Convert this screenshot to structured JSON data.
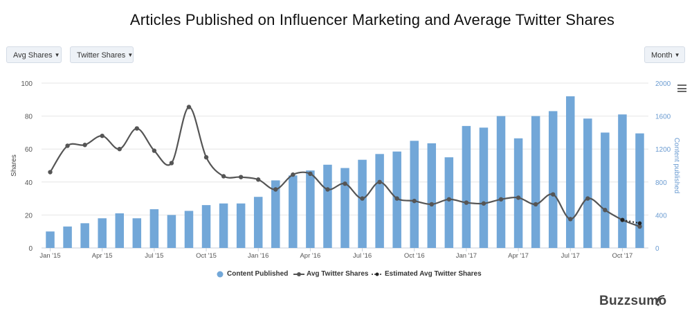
{
  "title": "Articles Published on Influencer Marketing and Average Twitter Shares",
  "controls": {
    "shares_dropdown": "Avg Shares",
    "twitter_dropdown": "Twitter Shares",
    "period_dropdown": "Month"
  },
  "brand": "Buzzsumo",
  "chart_data": {
    "type": "bar",
    "categories": [
      "Jan '15",
      "Feb '15",
      "Mar '15",
      "Apr '15",
      "May '15",
      "Jun '15",
      "Jul '15",
      "Aug '15",
      "Sep '15",
      "Oct '15",
      "Nov '15",
      "Dec '15",
      "Jan '16",
      "Feb '16",
      "Mar '16",
      "Apr '16",
      "May '16",
      "Jun '16",
      "Jul '16",
      "Aug '16",
      "Sep '16",
      "Oct '16",
      "Nov '16",
      "Dec '16",
      "Jan '17",
      "Feb '17",
      "Mar '17",
      "Apr '17",
      "May '17",
      "Jun '17",
      "Jul '17",
      "Aug '17",
      "Sep '17",
      "Oct '17",
      "Nov '17"
    ],
    "x_tick_labels": [
      "Jan '15",
      "Apr '15",
      "Jul '15",
      "Oct '15",
      "Jan '16",
      "Apr '16",
      "Jul '16",
      "Oct '16",
      "Jan '17",
      "Apr '17",
      "Jul '17",
      "Oct '17"
    ],
    "series": [
      {
        "name": "Content Published",
        "axis": "right",
        "color": "#72a7d8",
        "values": [
          200,
          260,
          300,
          360,
          420,
          360,
          470,
          400,
          450,
          520,
          540,
          540,
          620,
          820,
          880,
          940,
          1010,
          970,
          1070,
          1140,
          1170,
          1300,
          1270,
          1100,
          1480,
          1460,
          1600,
          1330,
          1600,
          1660,
          1840,
          1570,
          1400,
          1620,
          1390
        ]
      },
      {
        "name": "Avg Twitter Shares",
        "axis": "left",
        "color": "#555555",
        "values": [
          46,
          62,
          62.5,
          68,
          60,
          72.5,
          59,
          51.5,
          85.5,
          55,
          43.5,
          43,
          41.5,
          35.5,
          44.5,
          45,
          35.5,
          39,
          30,
          40,
          30,
          28.5,
          26.5,
          29.5,
          27.5,
          27,
          29.5,
          30.5,
          26.5,
          32.5,
          17.5,
          30,
          23,
          17,
          13
        ]
      },
      {
        "name": "Estimated Avg Twitter Shares",
        "axis": "left",
        "color": "#222222",
        "dashed": true,
        "x": [
          "Oct '17",
          "Nov '17"
        ],
        "values": [
          17,
          15
        ]
      }
    ],
    "y_left": {
      "label": "Shares",
      "ylim": [
        0,
        100
      ],
      "ticks": [
        0,
        20,
        40,
        60,
        80,
        100
      ]
    },
    "y_right": {
      "label": "Content published",
      "ylim": [
        0,
        2000
      ],
      "ticks": [
        0,
        400,
        800,
        1200,
        1600,
        2000
      ],
      "color": "#6a9bd1"
    },
    "grid": true,
    "legend_position": "bottom-center"
  }
}
